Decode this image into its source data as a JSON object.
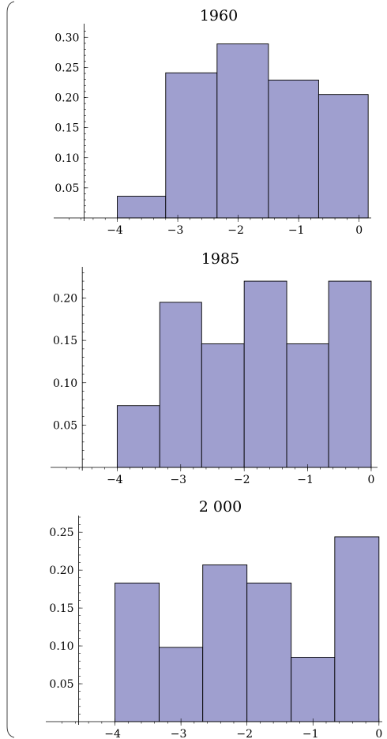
{
  "chart_data": [
    {
      "type": "bar",
      "title": "1960",
      "xlabel": "",
      "ylabel": "",
      "bin_edges": [
        -4.0,
        -3.2,
        -2.35,
        -1.5,
        -0.67,
        0.15
      ],
      "values": [
        0.036,
        0.241,
        0.289,
        0.229,
        0.205
      ],
      "xlim": [
        -5,
        0.2
      ],
      "ylim": [
        0,
        0.32
      ],
      "xticks": [
        -4,
        -3,
        -2,
        -1,
        0
      ],
      "xtick_labels": [
        "−4",
        "−3",
        "−2",
        "−1",
        "0"
      ],
      "yticks": [
        0.05,
        0.1,
        0.15,
        0.2,
        0.25,
        0.3
      ],
      "ytick_labels": [
        "0.05",
        "0.10",
        "0.15",
        "0.20",
        "0.25",
        "0.30"
      ],
      "grid": false
    },
    {
      "type": "bar",
      "title": "1985",
      "xlabel": "",
      "ylabel": "",
      "bin_edges": [
        -4.0,
        -3.33,
        -2.67,
        -2.0,
        -1.33,
        -0.67,
        0.0
      ],
      "values": [
        0.073,
        0.195,
        0.146,
        0.22,
        0.146,
        0.22
      ],
      "xlim": [
        -5,
        0.1
      ],
      "ylim": [
        0,
        0.235
      ],
      "xticks": [
        -4,
        -3,
        -2,
        -1,
        0
      ],
      "xtick_labels": [
        "−4",
        "−3",
        "−2",
        "−1",
        "0"
      ],
      "yticks": [
        0.05,
        0.1,
        0.15,
        0.2
      ],
      "ytick_labels": [
        "0.05",
        "0.10",
        "0.15",
        "0.20"
      ],
      "grid": false
    },
    {
      "type": "bar",
      "title": "2 000",
      "xlabel": "",
      "ylabel": "",
      "bin_edges": [
        -4.0,
        -3.33,
        -2.67,
        -2.0,
        -1.33,
        -0.67,
        0.0
      ],
      "values": [
        0.183,
        0.098,
        0.207,
        0.183,
        0.085,
        0.244
      ],
      "xlim": [
        -5,
        0.05
      ],
      "ylim": [
        0,
        0.27
      ],
      "xticks": [
        -4,
        -3,
        -2,
        -1,
        0
      ],
      "xtick_labels": [
        "−4",
        "−3",
        "−2",
        "−1",
        "0"
      ],
      "yticks": [
        0.05,
        0.1,
        0.15,
        0.2,
        0.25
      ],
      "ytick_labels": [
        "0.05",
        "0.10",
        "0.15",
        "0.20",
        "0.25"
      ],
      "grid": false
    }
  ],
  "colors": {
    "bar_fill": "#9f9fcf",
    "bar_stroke": "#000000",
    "axis": "#000000"
  }
}
